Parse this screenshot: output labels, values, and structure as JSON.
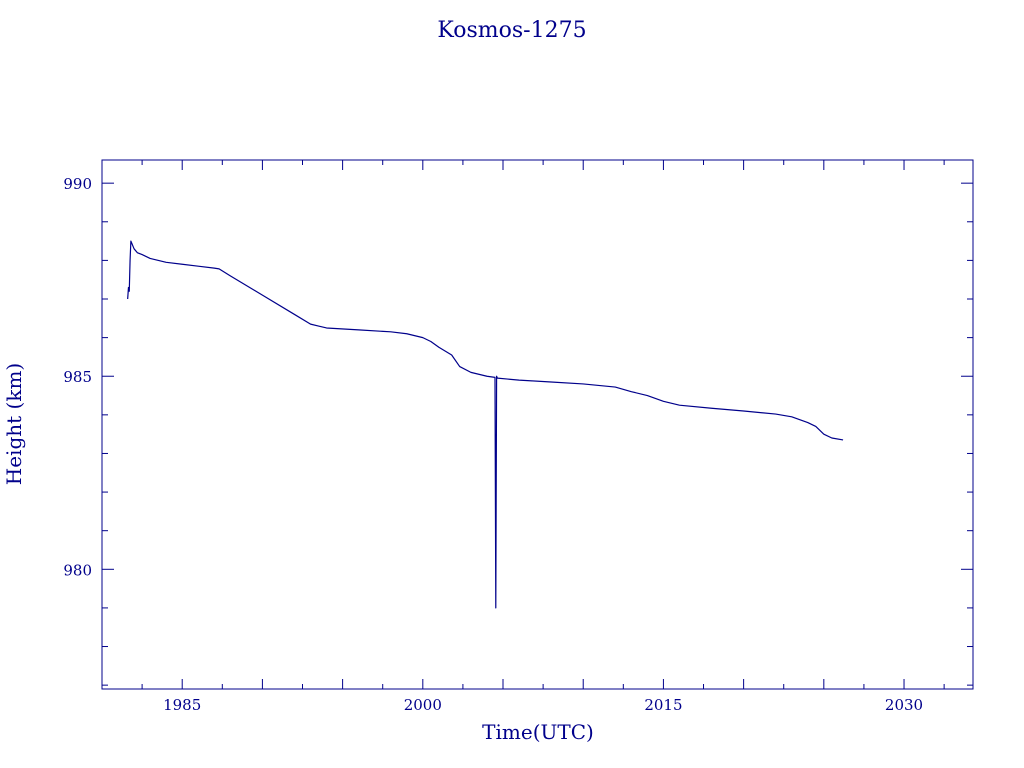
{
  "chart_data": {
    "type": "line",
    "title": "Kosmos-1275",
    "xlabel": "Time(UTC)",
    "ylabel": "Height (km)",
    "xlim": [
      1980,
      2034.3
    ],
    "ylim": [
      976.9,
      990.6
    ],
    "x_ticks": [
      1985,
      2000,
      2015,
      2030
    ],
    "x_tick_labels": [
      "1985",
      "2000",
      "2015",
      "2030"
    ],
    "x_minor_step": 2.5,
    "y_ticks": [
      980,
      985,
      990
    ],
    "y_tick_labels": [
      "980",
      "985",
      "990"
    ],
    "y_minor_step": 1,
    "grid": false,
    "series": [
      {
        "x": [
          1981.6,
          1981.65,
          1981.7,
          1981.75,
          1981.8,
          1981.85,
          1981.9,
          1982.0,
          1982.2,
          1982.5,
          1983.0,
          1984.0,
          1985.0,
          1986.0,
          1987.0,
          1987.3,
          1988.0,
          1990.0,
          1992.0,
          1993.0,
          1993.5,
          1994.0,
          1996.0,
          1998.0,
          1999.0,
          2000.0,
          2000.5,
          2001.0,
          2001.8,
          2002.3,
          2003.0,
          2004.0,
          2004.5,
          2004.55,
          2004.6,
          2004.65,
          2006.0,
          2008.0,
          2010.0,
          2012.0,
          2013.0,
          2014.0,
          2015.0,
          2016.0,
          2018.0,
          2020.0,
          2022.0,
          2023.0,
          2024.0,
          2024.5,
          2025.0,
          2025.5,
          2026.2
        ],
        "y": [
          987.0,
          987.3,
          987.2,
          988.0,
          988.5,
          988.45,
          988.4,
          988.3,
          988.2,
          988.15,
          988.05,
          987.95,
          987.9,
          987.85,
          987.8,
          987.78,
          987.6,
          987.1,
          986.6,
          986.35,
          986.3,
          986.25,
          986.2,
          986.15,
          986.1,
          986.0,
          985.9,
          985.75,
          985.55,
          985.25,
          985.1,
          985.0,
          984.97,
          979.0,
          985.0,
          984.95,
          984.9,
          984.85,
          984.8,
          984.72,
          984.6,
          984.5,
          984.35,
          984.25,
          984.17,
          984.1,
          984.02,
          983.95,
          983.8,
          983.7,
          983.5,
          983.4,
          983.35
        ]
      }
    ]
  }
}
